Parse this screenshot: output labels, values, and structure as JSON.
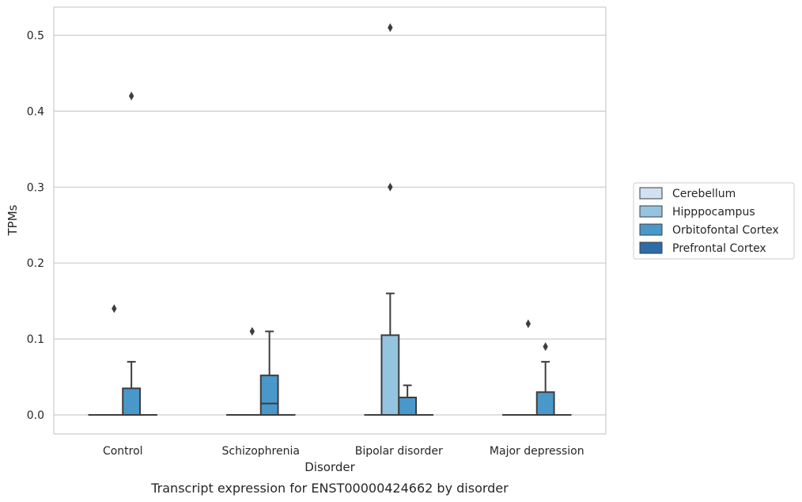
{
  "chart_data": {
    "type": "box",
    "caption": "Transcript expression for ENST00000424662 by disorder",
    "xlabel": "Disorder",
    "ylabel": "TPMs",
    "ylim": [
      -0.025,
      0.537
    ],
    "yticks": [
      0.0,
      0.1,
      0.2,
      0.3,
      0.4,
      0.5
    ],
    "ytick_labels": [
      "0.0",
      "0.1",
      "0.2",
      "0.3",
      "0.4",
      "0.5"
    ],
    "grid": "horizontal",
    "legend_position": "right",
    "categories": [
      "Control",
      "Schizophrenia",
      "Bipolar disorder",
      "Major depression"
    ],
    "series": [
      {
        "name": "Cerebellum",
        "color": "#d0e1f2",
        "boxes": [
          {
            "category": "Control",
            "min": 0,
            "q1": 0,
            "median": 0,
            "q3": 0,
            "max": 0,
            "outliers": []
          },
          {
            "category": "Schizophrenia",
            "min": 0,
            "q1": 0,
            "median": 0,
            "q3": 0,
            "max": 0,
            "outliers": []
          },
          {
            "category": "Bipolar disorder",
            "min": 0,
            "q1": 0,
            "median": 0,
            "q3": 0,
            "max": 0,
            "outliers": []
          },
          {
            "category": "Major depression",
            "min": 0,
            "q1": 0,
            "median": 0,
            "q3": 0,
            "max": 0,
            "outliers": []
          }
        ]
      },
      {
        "name": "Hipppocampus",
        "color": "#94c4df",
        "boxes": [
          {
            "category": "Control",
            "min": 0,
            "q1": 0,
            "median": 0,
            "q3": 0,
            "max": 0,
            "outliers": [
              0.14
            ]
          },
          {
            "category": "Schizophrenia",
            "min": 0,
            "q1": 0,
            "median": 0,
            "q3": 0,
            "max": 0,
            "outliers": [
              0.11
            ]
          },
          {
            "category": "Bipolar disorder",
            "min": 0,
            "q1": 0,
            "median": 0,
            "q3": 0.105,
            "max": 0.16,
            "outliers": [
              0.3,
              0.51
            ]
          },
          {
            "category": "Major depression",
            "min": 0,
            "q1": 0,
            "median": 0,
            "q3": 0,
            "max": 0,
            "outliers": [
              0.12
            ]
          }
        ]
      },
      {
        "name": "Orbitofontal Cortex",
        "color": "#4a98c9",
        "boxes": [
          {
            "category": "Control",
            "min": 0,
            "q1": 0,
            "median": 0,
            "q3": 0.035,
            "max": 0.07,
            "outliers": [
              0.42
            ]
          },
          {
            "category": "Schizophrenia",
            "min": 0,
            "q1": 0,
            "median": 0.015,
            "q3": 0.052,
            "max": 0.11,
            "outliers": []
          },
          {
            "category": "Bipolar disorder",
            "min": 0,
            "q1": 0,
            "median": 0,
            "q3": 0.023,
            "max": 0.039,
            "outliers": []
          },
          {
            "category": "Major depression",
            "min": 0,
            "q1": 0,
            "median": 0,
            "q3": 0.03,
            "max": 0.07,
            "outliers": [
              0.09
            ]
          }
        ]
      },
      {
        "name": "Prefrontal Cortex",
        "color": "#2c6ca8",
        "boxes": [
          {
            "category": "Control",
            "min": 0,
            "q1": 0,
            "median": 0,
            "q3": 0,
            "max": 0,
            "outliers": []
          },
          {
            "category": "Schizophrenia",
            "min": 0,
            "q1": 0,
            "median": 0,
            "q3": 0,
            "max": 0,
            "outliers": []
          },
          {
            "category": "Bipolar disorder",
            "min": 0,
            "q1": 0,
            "median": 0,
            "q3": 0,
            "max": 0,
            "outliers": []
          },
          {
            "category": "Major depression",
            "min": 0,
            "q1": 0,
            "median": 0,
            "q3": 0,
            "max": 0,
            "outliers": []
          }
        ]
      }
    ]
  }
}
